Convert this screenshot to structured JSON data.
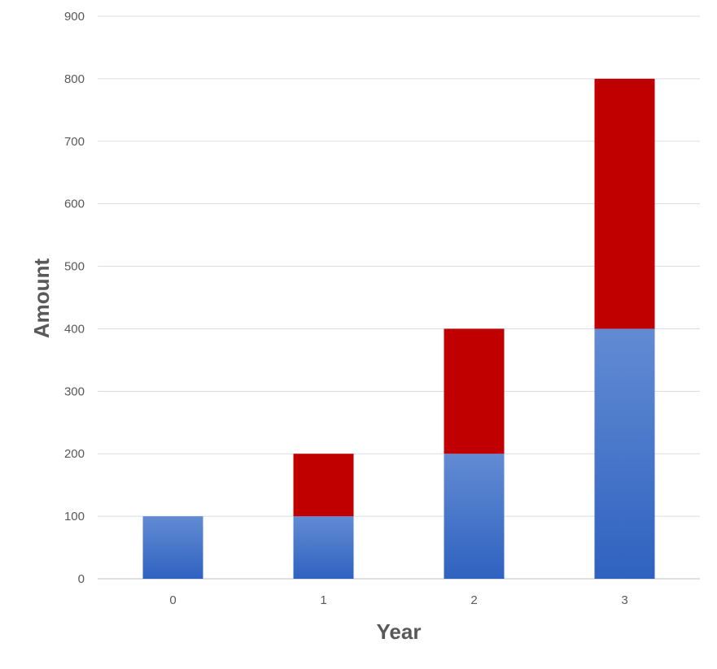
{
  "chart_data": {
    "type": "bar",
    "stacked": true,
    "categories": [
      "0",
      "1",
      "2",
      "3"
    ],
    "series": [
      {
        "values": [
          100,
          100,
          200,
          400
        ],
        "color": "#4472C4"
      },
      {
        "values": [
          0,
          100,
          200,
          400
        ],
        "color": "#C00000"
      }
    ],
    "xlabel": "Year",
    "ylabel": "Amount",
    "ylim": [
      0,
      900
    ],
    "yticks": [
      0,
      100,
      200,
      300,
      400,
      500,
      600,
      700,
      800,
      900
    ],
    "grid": true,
    "legend": "none"
  }
}
